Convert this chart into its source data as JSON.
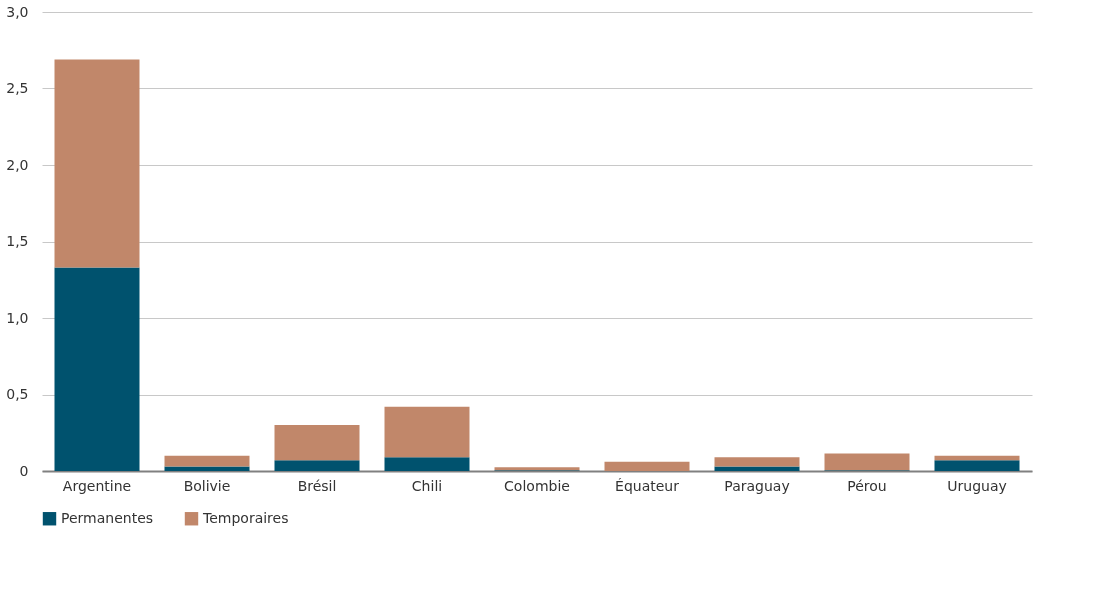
{
  "chart_data": {
    "type": "bar",
    "stacked": true,
    "categories": [
      "Argentine",
      "Bolivie",
      "Brésil",
      "Chili",
      "Colombie",
      "Équateur",
      "Paraguay",
      "Pérou",
      "Uruguay"
    ],
    "series": [
      {
        "name": "Permanentes",
        "color": "#00526e",
        "values": [
          1.33,
          0.03,
          0.07,
          0.09,
          0.005,
          null,
          0.03,
          0.005,
          0.07
        ]
      },
      {
        "name": "Temporaires",
        "color": "#c1876a",
        "values": [
          1.36,
          0.07,
          0.23,
          0.33,
          0.02,
          0.06,
          0.06,
          0.11,
          0.03
        ]
      }
    ],
    "ylim": [
      0,
      3
    ],
    "yticks": [
      0,
      {
        "value": 0.5,
        "label": "0,5"
      },
      {
        "value": 1,
        "label": "1,0"
      },
      {
        "value": 1.5,
        "label": "1,5"
      },
      {
        "value": 2,
        "label": "2,0"
      },
      {
        "value": 2.5,
        "label": "2,5"
      },
      {
        "value": 3,
        "label": "3,0"
      }
    ],
    "grid": "y",
    "legend": "bottom"
  }
}
